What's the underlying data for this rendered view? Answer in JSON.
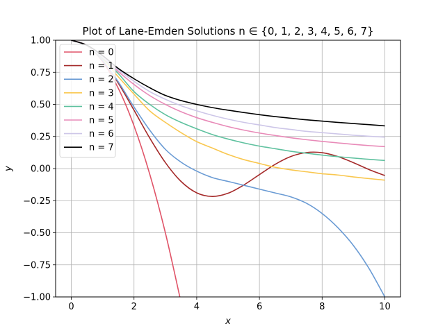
{
  "chart_data": {
    "type": "line",
    "title": "Plot of Lane-Emden Solutions n ∈ {0, 1, 2, 3, 4, 5, 6, 7}",
    "xlabel": "x",
    "ylabel": "y",
    "xlim": [
      -0.5,
      10.5
    ],
    "ylim": [
      -1.0,
      1.0
    ],
    "xticks": [
      "0",
      "2",
      "4",
      "6",
      "8",
      "10"
    ],
    "yticks": [
      "−1.00",
      "−0.75",
      "−0.50",
      "−0.25",
      "0.00",
      "0.25",
      "0.50",
      "0.75",
      "1.00"
    ],
    "grid": true,
    "legend_position": "top-left",
    "series": [
      {
        "name": "n = 0",
        "color": "#e05468",
        "x": [
          0,
          0.5,
          1,
          1.5,
          2,
          2.5,
          3,
          3.5
        ],
        "values": [
          1,
          0.958,
          0.833,
          0.625,
          0.333,
          -0.042,
          -0.5,
          -1.042
        ]
      },
      {
        "name": "n = 1",
        "color": "#a52a2a",
        "x": [
          0,
          0.5,
          1,
          1.5,
          2,
          2.5,
          3,
          3.5,
          4,
          4.5,
          5,
          5.5,
          6,
          6.5,
          7,
          7.5,
          8,
          8.5,
          9,
          9.5,
          10
        ],
        "values": [
          1,
          0.959,
          0.841,
          0.665,
          0.455,
          0.239,
          0.047,
          -0.1,
          -0.189,
          -0.217,
          -0.192,
          -0.128,
          -0.047,
          0.033,
          0.094,
          0.125,
          0.124,
          0.094,
          0.046,
          -0.008,
          -0.054
        ]
      },
      {
        "name": "n = 2",
        "color": "#6a9bd4",
        "x": [
          0,
          0.5,
          1,
          1.5,
          2,
          2.5,
          3,
          3.5,
          4,
          4.5,
          5,
          5.5,
          6,
          6.5,
          7,
          7.5,
          8,
          8.5,
          9,
          9.5,
          10
        ],
        "values": [
          1,
          0.959,
          0.842,
          0.675,
          0.48,
          0.3,
          0.15,
          0.05,
          -0.02,
          -0.07,
          -0.1,
          -0.13,
          -0.16,
          -0.19,
          -0.22,
          -0.27,
          -0.35,
          -0.46,
          -0.6,
          -0.78,
          -1.0
        ]
      },
      {
        "name": "n = 3",
        "color": "#f9c74f",
        "x": [
          0,
          0.5,
          1,
          1.5,
          2,
          2.5,
          3,
          3.5,
          4,
          4.5,
          5,
          5.5,
          6,
          6.5,
          7,
          7.5,
          8,
          8.5,
          9,
          9.5,
          10
        ],
        "values": [
          1,
          0.959,
          0.855,
          0.715,
          0.58,
          0.45,
          0.36,
          0.28,
          0.21,
          0.16,
          0.11,
          0.07,
          0.04,
          0.01,
          -0.01,
          -0.025,
          -0.04,
          -0.05,
          -0.065,
          -0.078,
          -0.09
        ]
      },
      {
        "name": "n = 4",
        "color": "#5fc19f",
        "x": [
          0,
          0.5,
          1,
          1.5,
          2,
          2.5,
          3,
          3.5,
          4,
          4.5,
          5,
          5.5,
          6,
          6.5,
          7,
          7.5,
          8,
          8.5,
          9,
          9.5,
          10
        ],
        "values": [
          1,
          0.959,
          0.86,
          0.74,
          0.6,
          0.5,
          0.42,
          0.36,
          0.31,
          0.265,
          0.23,
          0.2,
          0.175,
          0.155,
          0.135,
          0.12,
          0.105,
          0.093,
          0.082,
          0.072,
          0.063
        ]
      },
      {
        "name": "n = 5",
        "color": "#e88ab8",
        "x": [
          0,
          0.5,
          1,
          1.5,
          2,
          2.5,
          3,
          3.5,
          4,
          4.5,
          5,
          5.5,
          6,
          6.5,
          7,
          7.5,
          8,
          8.5,
          9,
          9.5,
          10
        ],
        "values": [
          1,
          0.96,
          0.866,
          0.756,
          0.655,
          0.569,
          0.5,
          0.443,
          0.397,
          0.36,
          0.327,
          0.3,
          0.277,
          0.258,
          0.24,
          0.225,
          0.212,
          0.2,
          0.189,
          0.179,
          0.171
        ]
      },
      {
        "name": "n = 6",
        "color": "#cdc6e8",
        "x": [
          0,
          0.5,
          1,
          1.5,
          2,
          2.5,
          3,
          3.5,
          4,
          4.5,
          5,
          5.5,
          6,
          6.5,
          7,
          7.5,
          8,
          8.5,
          9,
          9.5,
          10
        ],
        "values": [
          1,
          0.96,
          0.87,
          0.77,
          0.68,
          0.6,
          0.54,
          0.49,
          0.45,
          0.415,
          0.385,
          0.36,
          0.34,
          0.32,
          0.305,
          0.29,
          0.28,
          0.27,
          0.26,
          0.252,
          0.245
        ]
      },
      {
        "name": "n = 7",
        "color": "#000000",
        "x": [
          0,
          0.5,
          1,
          1.5,
          2,
          2.5,
          3,
          3.5,
          4,
          4.5,
          5,
          5.5,
          6,
          6.5,
          7,
          7.5,
          8,
          8.5,
          9,
          9.5,
          10
        ],
        "values": [
          1,
          0.961,
          0.88,
          0.78,
          0.7,
          0.63,
          0.57,
          0.53,
          0.5,
          0.475,
          0.455,
          0.437,
          0.42,
          0.405,
          0.392,
          0.38,
          0.37,
          0.36,
          0.351,
          0.342,
          0.333
        ]
      }
    ]
  }
}
